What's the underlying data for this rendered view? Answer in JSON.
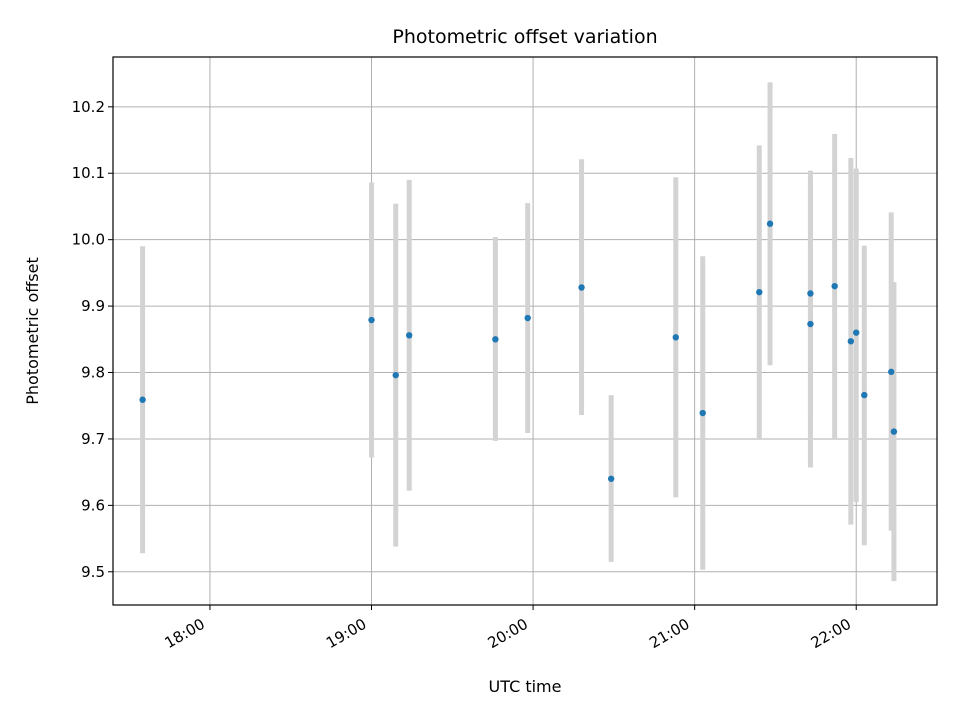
{
  "chart_data": {
    "type": "scatter",
    "title": "Photometric offset variation",
    "xlabel": "UTC time",
    "ylabel": "Photometric offset",
    "x_axis": {
      "kind": "time",
      "range": [
        "17:24",
        "22:30"
      ],
      "ticks": [
        "18:00",
        "19:00",
        "20:00",
        "21:00",
        "22:00"
      ]
    },
    "y_axis": {
      "range": [
        9.45,
        10.275
      ],
      "ticks": [
        9.5,
        9.6,
        9.7,
        9.8,
        9.9,
        10.0,
        10.1,
        10.2
      ],
      "tick_labels": [
        "9.5",
        "9.6",
        "9.7",
        "9.8",
        "9.9",
        "10.0",
        "10.1",
        "10.2"
      ]
    },
    "grid": true,
    "legend": "none",
    "colors": {
      "point": "#1f77b4",
      "errorbar": "#d3d3d3",
      "grid": "#b0b0b0"
    },
    "points": [
      {
        "t": "17:35",
        "y": 9.759,
        "lo": 9.528,
        "hi": 9.99
      },
      {
        "t": "19:00",
        "y": 9.879,
        "lo": 9.672,
        "hi": 10.086
      },
      {
        "t": "19:09",
        "y": 9.796,
        "lo": 9.538,
        "hi": 10.054
      },
      {
        "t": "19:14",
        "y": 9.856,
        "lo": 9.622,
        "hi": 10.09
      },
      {
        "t": "19:46",
        "y": 9.85,
        "lo": 9.697,
        "hi": 10.004
      },
      {
        "t": "19:58",
        "y": 9.882,
        "lo": 9.709,
        "hi": 10.055
      },
      {
        "t": "20:18",
        "y": 9.928,
        "lo": 9.736,
        "hi": 10.121
      },
      {
        "t": "20:29",
        "y": 9.64,
        "lo": 9.515,
        "hi": 9.766
      },
      {
        "t": "20:53",
        "y": 9.853,
        "lo": 9.612,
        "hi": 10.094
      },
      {
        "t": "21:03",
        "y": 9.739,
        "lo": 9.503,
        "hi": 9.975
      },
      {
        "t": "21:24",
        "y": 9.921,
        "lo": 9.7,
        "hi": 10.142
      },
      {
        "t": "21:28",
        "y": 10.024,
        "lo": 9.811,
        "hi": 10.237
      },
      {
        "t": "21:43",
        "y": 9.873,
        "lo": 9.657,
        "hi": 10.089
      },
      {
        "t": "21:43",
        "y": 9.919,
        "lo": 9.734,
        "hi": 10.104
      },
      {
        "t": "21:52",
        "y": 9.93,
        "lo": 9.7,
        "hi": 10.159
      },
      {
        "t": "21:58",
        "y": 9.847,
        "lo": 9.571,
        "hi": 10.123
      },
      {
        "t": "22:00",
        "y": 9.86,
        "lo": 9.605,
        "hi": 10.107
      },
      {
        "t": "22:03",
        "y": 9.766,
        "lo": 9.54,
        "hi": 9.991
      },
      {
        "t": "22:13",
        "y": 9.801,
        "lo": 9.562,
        "hi": 10.041
      },
      {
        "t": "22:14",
        "y": 9.711,
        "lo": 9.486,
        "hi": 9.936
      }
    ]
  }
}
